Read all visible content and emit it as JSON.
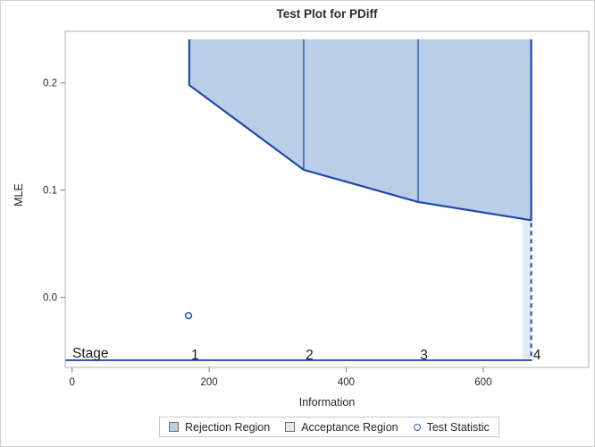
{
  "chart_data": {
    "type": "area",
    "title": "Test Plot for PDiff",
    "xlabel": "Information",
    "ylabel": "MLE",
    "xlim": [
      -10,
      754
    ],
    "ylim": [
      -0.0653,
      0.2481
    ],
    "grid": false,
    "x_ticks": [
      {
        "v": 0,
        "label": "0"
      },
      {
        "v": 200,
        "label": "200"
      },
      {
        "v": 400,
        "label": "400"
      },
      {
        "v": 600,
        "label": "600"
      }
    ],
    "y_ticks": [
      {
        "v": 0.0,
        "label": "0.0"
      },
      {
        "v": 0.1,
        "label": "0.1"
      },
      {
        "v": 0.2,
        "label": "0.2"
      }
    ],
    "stage_axis": {
      "label": "Stage",
      "y_mle": -0.0586
    },
    "stages": [
      {
        "label": "1",
        "information": 171,
        "rejection_boundary_mle": 0.198
      },
      {
        "label": "2",
        "information": 338,
        "rejection_boundary_mle": 0.119
      },
      {
        "label": "3",
        "information": 505,
        "rejection_boundary_mle": 0.089
      },
      {
        "label": "4",
        "information": 670,
        "rejection_boundary_mle": 0.072,
        "final": true
      }
    ],
    "rejection_region_top_mle": 0.2406,
    "final_stage_strip": {
      "x_from": 657,
      "x_to": 670
    },
    "test_statistic": {
      "information": 170,
      "mle": -0.017
    }
  },
  "legend": {
    "items": [
      {
        "label": "Rejection Region",
        "type": "rect",
        "fill": "#b9cfe7"
      },
      {
        "label": "Acceptance Region",
        "type": "rect",
        "fill": "#e2e9f3"
      },
      {
        "label": "Test Statistic",
        "type": "circle"
      }
    ]
  },
  "colors": {
    "boundary": "#2049a8",
    "stage_line": "#4066b0",
    "rejection_fill": "#b9cfe7",
    "final_strip": "#e4eaf4",
    "frame": "#b2b2b2",
    "tick": "#7f7f7f",
    "text": "#262626",
    "marker": "#2b56ac"
  }
}
